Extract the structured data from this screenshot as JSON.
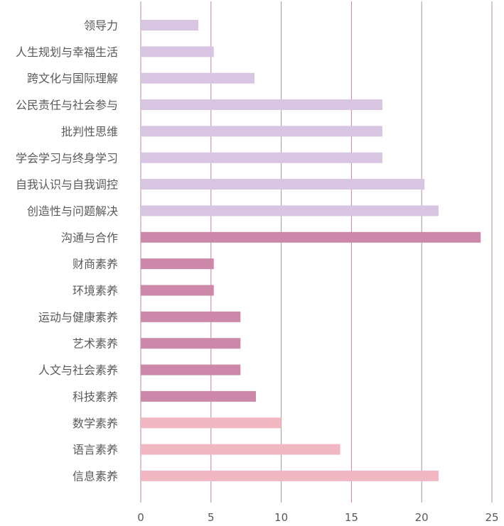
{
  "chart_data": {
    "type": "bar",
    "orientation": "horizontal",
    "categories": [
      "领导力",
      "人生规划与幸福生活",
      "跨文化与国际理解",
      "公民责任与社会参与",
      "批判性思维",
      "学会学习与终身学习",
      "自我认识与自我调控",
      "创造性与问题解决",
      "沟通与合作",
      "财商素养",
      "环境素养",
      "运动与健康素养",
      "艺术素养",
      "人文与社会素养",
      "科技素养",
      "数学素养",
      "语言素养",
      "信息素养"
    ],
    "values": [
      4.1,
      5.2,
      8.1,
      17.2,
      17.2,
      17.2,
      20.2,
      21.2,
      24.2,
      5.2,
      5.2,
      7.1,
      7.1,
      7.1,
      8.2,
      10.0,
      14.2,
      21.2
    ],
    "groups": [
      {
        "color": "#d8c5e2",
        "categories": [
          "领导力",
          "人生规划与幸福生活",
          "跨文化与国际理解",
          "公民责任与社会参与",
          "批判性思维",
          "学会学习与终身学习",
          "自我认识与自我调控",
          "创造性与问题解决"
        ]
      },
      {
        "color": "#cc88a8",
        "categories": [
          "沟通与合作",
          "财商素养",
          "环境素养",
          "运动与健康素养",
          "艺术素养",
          "人文与社会素养",
          "科技素养"
        ]
      },
      {
        "color": "#f1b8c4",
        "categories": [
          "数学素养",
          "语言素养",
          "信息素养"
        ]
      }
    ],
    "xticks": [
      "0",
      "5",
      "10",
      "15",
      "20",
      "25"
    ],
    "xlim": [
      0,
      25
    ],
    "gridlines": "vertical",
    "grid_color": "#b48aa2",
    "title": "",
    "xlabel": "",
    "ylabel": ""
  }
}
